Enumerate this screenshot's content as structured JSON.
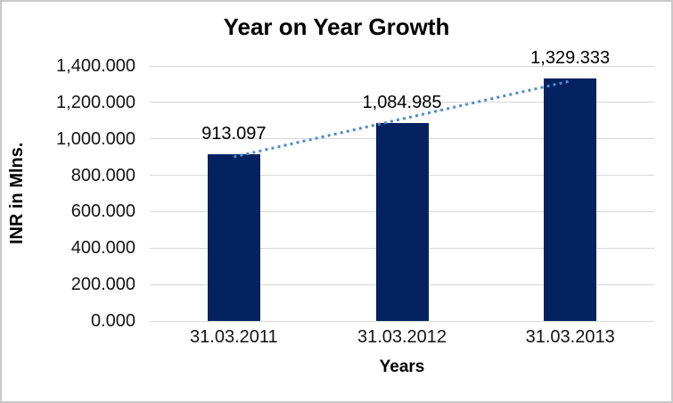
{
  "chart_data": {
    "type": "bar",
    "title": "Year on Year Growth",
    "xlabel": "Years",
    "ylabel": "INR in Mlns.",
    "categories": [
      "31.03.2011",
      "31.03.2012",
      "31.03.2013"
    ],
    "values": [
      913.097,
      1084.985,
      1329.333
    ],
    "value_labels": [
      "913.097",
      "1,084.985",
      "1,329.333"
    ],
    "ylim": [
      0,
      1400
    ],
    "yticks": [
      {
        "value": 0,
        "label": "0.000"
      },
      {
        "value": 200,
        "label": "200.000"
      },
      {
        "value": 400,
        "label": "400.000"
      },
      {
        "value": 600,
        "label": "600.000"
      },
      {
        "value": 800,
        "label": "800.000"
      },
      {
        "value": 1000,
        "label": "1,000.000"
      },
      {
        "value": 1200,
        "label": "1,200.000"
      },
      {
        "value": 1400,
        "label": "1,400.000"
      }
    ],
    "grid": true,
    "legend": false,
    "bar_color": "#03225f",
    "gridline_color": "#d8d8d8",
    "trendline": {
      "type": "linear",
      "style": "dotted",
      "color": "#5189cb"
    }
  }
}
